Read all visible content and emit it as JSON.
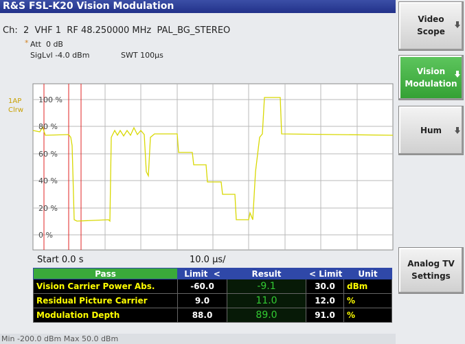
{
  "header": {
    "title": "R&S FSL-K20 Vision Modulation",
    "channel": "Ch:  2  VHF 1  RF 48.250000 MHz  PAL_BG_STEREO"
  },
  "settings": {
    "att_marker": "*",
    "att": "Att  0 dB",
    "siglvl": "SigLvl -4.0 dBm",
    "swt": "SWT 100µs"
  },
  "trace": {
    "label": "1AP",
    "mode": "Clrw"
  },
  "y_labels": [
    "100 %",
    "80 %",
    "60 %",
    "40 %",
    "20 %",
    "0 %"
  ],
  "x_axis": {
    "start": "Start 0.0 s",
    "division": "10.0 µs/"
  },
  "table": {
    "header": [
      "Pass",
      "Limit",
      "<",
      "Result",
      "<",
      "Limit",
      "Unit"
    ],
    "rows": [
      [
        "Vision Carrier Power Abs.",
        "-60.0",
        "-9.1",
        "30.0",
        "dBm"
      ],
      [
        "Residual Picture Carrier",
        "9.0",
        "11.0",
        "12.0",
        "%"
      ],
      [
        "Modulation Depth",
        "88.0",
        "89.0",
        "91.0",
        "%"
      ]
    ]
  },
  "softkeys": [
    {
      "line1": "Video",
      "line2": "Scope"
    },
    {
      "line1": "Vision",
      "line2": "Modulation"
    },
    {
      "line1": "Hum"
    },
    {
      "line1": "Analog TV",
      "line2": "Settings"
    }
  ],
  "footer": "Min -200.0 dBm Max 50.0 dBm"
}
